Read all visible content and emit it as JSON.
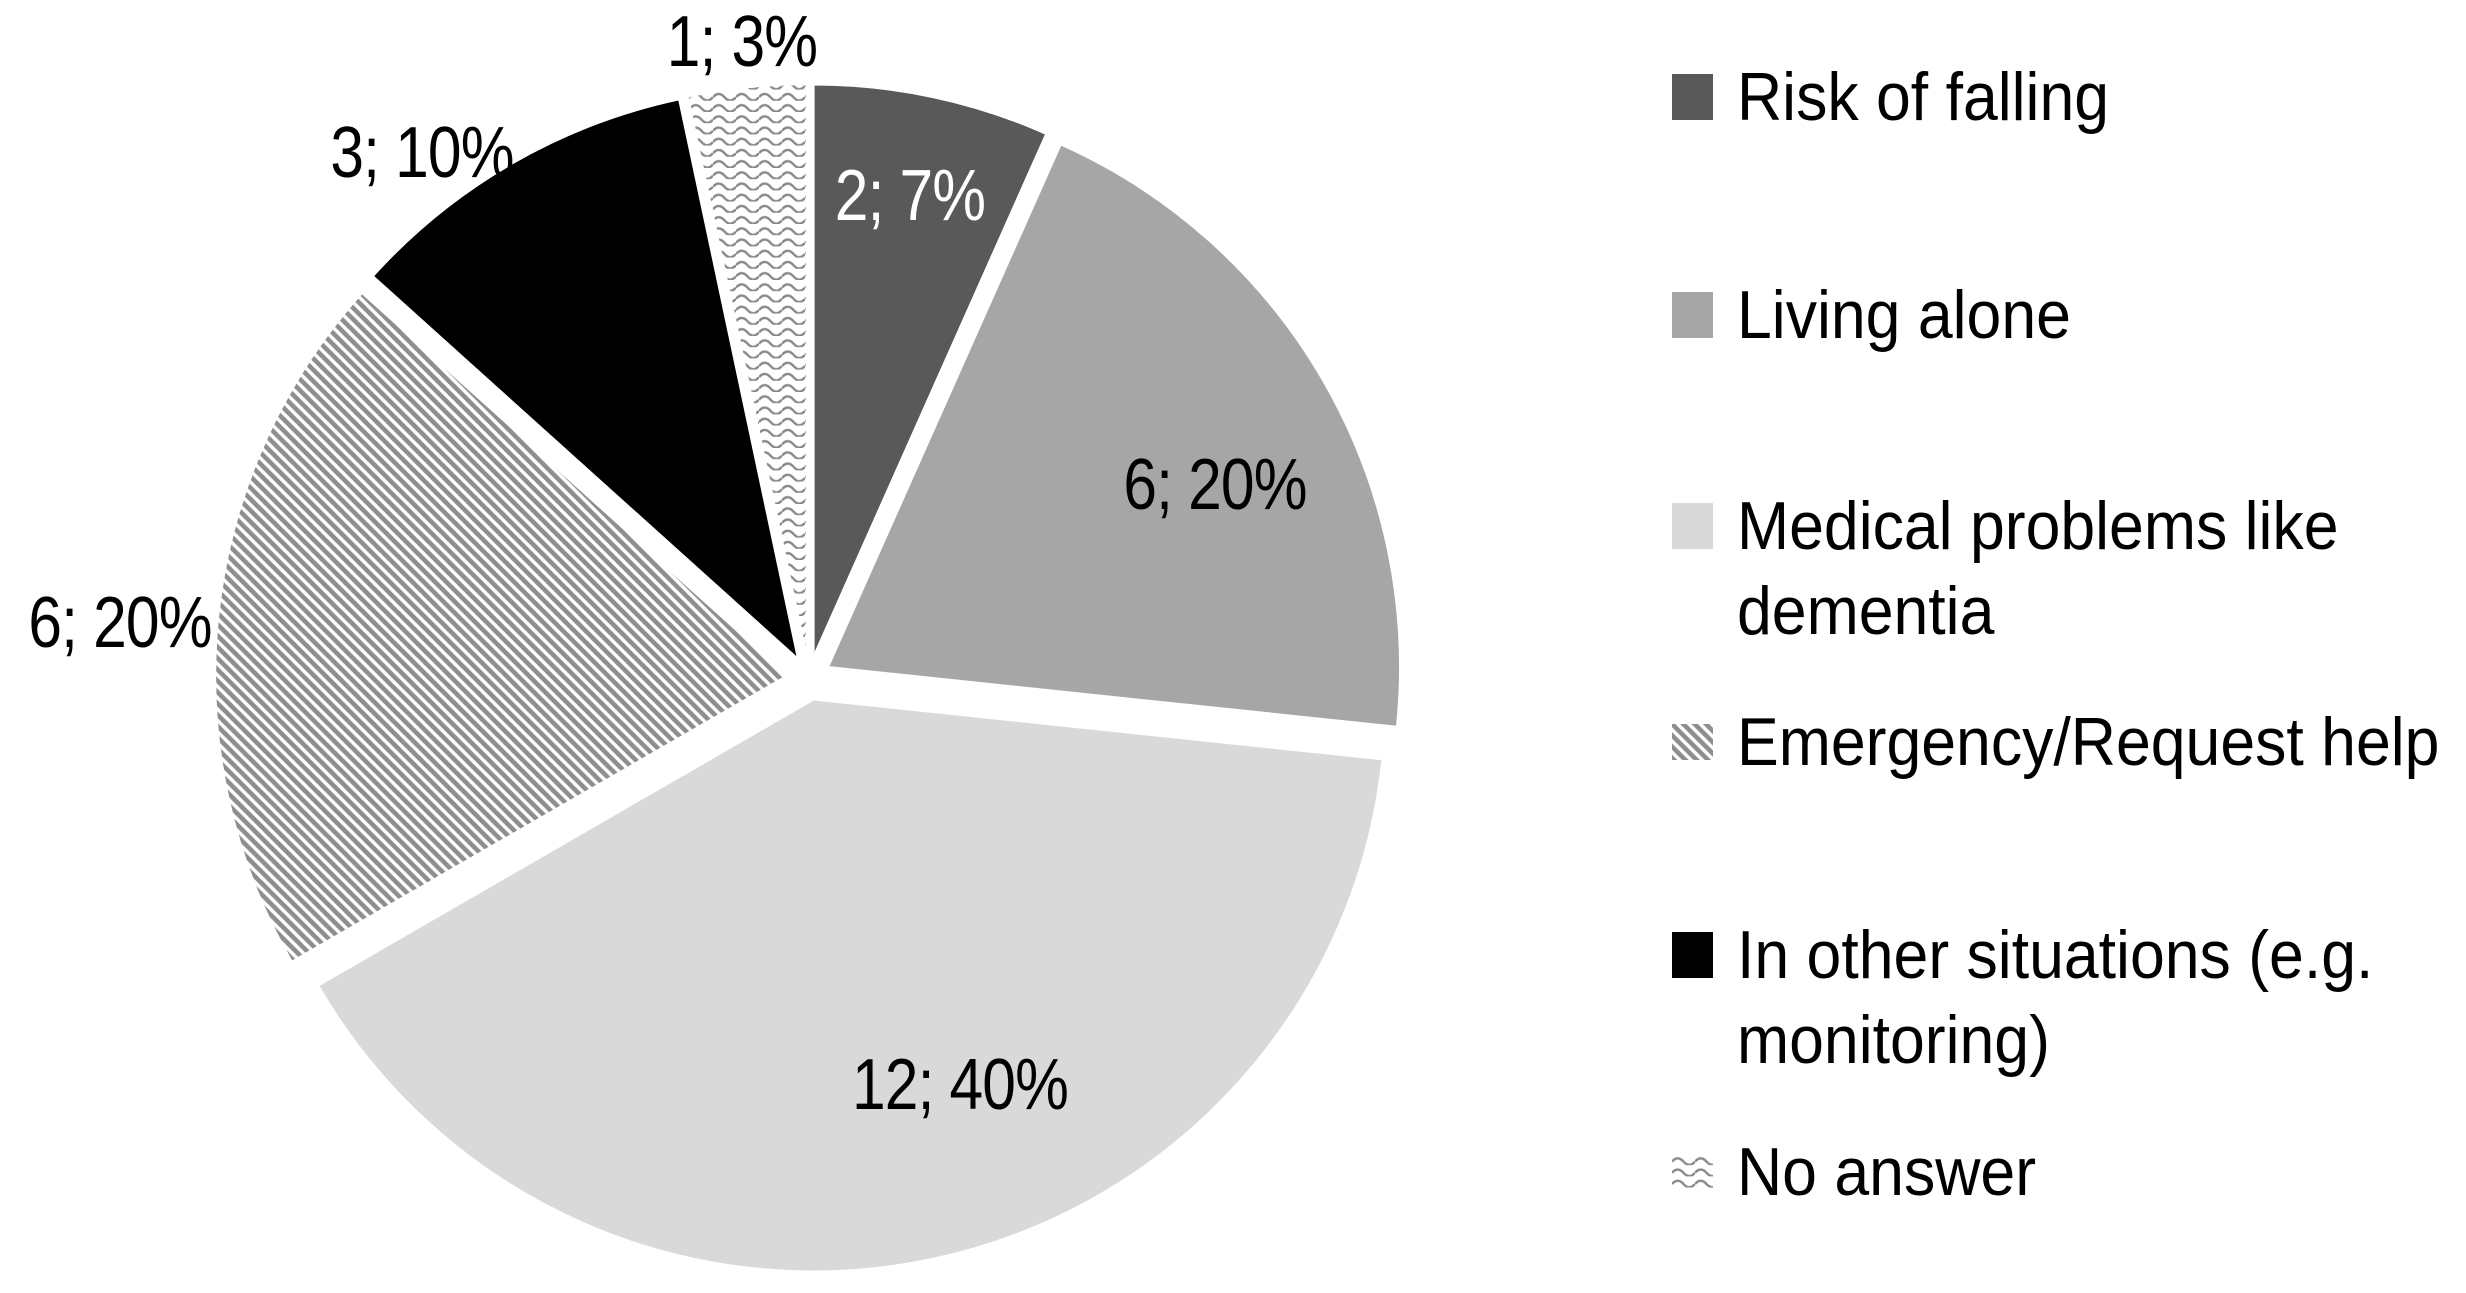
{
  "chart_data": {
    "type": "pie",
    "title": "",
    "total": 30,
    "start_angle_deg": 0,
    "direction": "clockwise",
    "legend_position": "right",
    "slices": [
      {
        "label": "Risk of falling",
        "legend_lines": [
          "Risk of falling"
        ],
        "value": 2,
        "percent": 7,
        "data_label": "2; 7%",
        "fill": "#595959",
        "pattern": "solid",
        "data_label_color": "#ffffff"
      },
      {
        "label": "Living alone",
        "legend_lines": [
          "Living alone"
        ],
        "value": 6,
        "percent": 20,
        "data_label": "6; 20%",
        "fill": "#a6a6a6",
        "pattern": "solid",
        "data_label_color": "#000000"
      },
      {
        "label": "Medical problems like dementia",
        "legend_lines": [
          "Medical problems like",
          "dementia"
        ],
        "value": 12,
        "percent": 40,
        "data_label": "12; 40%",
        "fill": "#d9d9d9",
        "pattern": "solid",
        "data_label_color": "#000000"
      },
      {
        "label": "Emergency/Request help",
        "legend_lines": [
          "Emergency/Request help"
        ],
        "value": 6,
        "percent": 20,
        "data_label": "6; 20%",
        "fill": "#ffffff",
        "pattern": "diagonal-stripes",
        "pattern_color": "#8e8e8e",
        "data_label_color": "#000000"
      },
      {
        "label": "In other situations (e.g. monitoring)",
        "legend_lines": [
          "In other situations (e.g.",
          "monitoring)"
        ],
        "value": 3,
        "percent": 10,
        "data_label": "3; 10%",
        "fill": "#000000",
        "pattern": "solid",
        "data_label_color": "#000000"
      },
      {
        "label": "No answer",
        "legend_lines": [
          "No answer"
        ],
        "value": 1,
        "percent": 3,
        "data_label": "1; 3%",
        "fill": "#ffffff",
        "pattern": "zigzag",
        "pattern_color": "#8a8a8a",
        "data_label_color": "#000000"
      }
    ]
  }
}
